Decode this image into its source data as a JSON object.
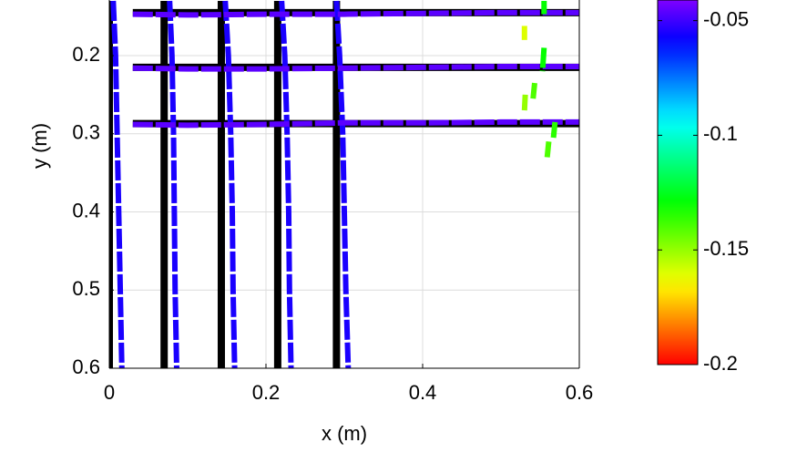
{
  "chart_data": {
    "type": "line",
    "xlabel": "x (m)",
    "ylabel": "y (m)",
    "xlim": [
      0,
      0.6
    ],
    "ylim": [
      0.13,
      0.6
    ],
    "y_reversed": true,
    "xticks": [
      0,
      0.2,
      0.4,
      0.6
    ],
    "yticks": [
      0.2,
      0.3,
      0.4,
      0.5,
      0.6
    ],
    "grid": true,
    "clim": [
      -0.2,
      -0.041
    ],
    "cticks": [
      -0.05,
      -0.1,
      -0.15,
      -0.2
    ],
    "series": [
      {
        "color": "#000000",
        "x": [
          0,
          0
        ],
        "y": [
          0.13,
          0.6
        ]
      },
      {
        "color": "#000000",
        "x": [
          0.07,
          0.07
        ],
        "y": [
          0.13,
          0.6
        ]
      },
      {
        "color": "#000000",
        "x": [
          0.143,
          0.143
        ],
        "y": [
          0.13,
          0.6
        ]
      },
      {
        "color": "#000000",
        "x": [
          0.215,
          0.215
        ],
        "y": [
          0.13,
          0.6
        ]
      },
      {
        "color": "#000000",
        "x": [
          0.29,
          0.29
        ],
        "y": [
          0.13,
          0.6
        ]
      },
      {
        "color": "#000000",
        "x": [
          0.03,
          0.6
        ],
        "y": [
          0.145,
          0.145
        ]
      },
      {
        "color": "#000000",
        "x": [
          0.03,
          0.6
        ],
        "y": [
          0.215,
          0.215
        ]
      },
      {
        "color": "#000000",
        "x": [
          0.03,
          0.6
        ],
        "y": [
          0.287,
          0.287
        ]
      },
      {
        "c": -0.055,
        "x": [
          0.005,
          0.008,
          0.01,
          0.012,
          0.014,
          0.016
        ],
        "y": [
          0.13,
          0.2,
          0.3,
          0.4,
          0.5,
          0.6
        ]
      },
      {
        "c": -0.055,
        "x": [
          0.077,
          0.08,
          0.082,
          0.083,
          0.084,
          0.086
        ],
        "y": [
          0.13,
          0.2,
          0.3,
          0.4,
          0.5,
          0.6
        ]
      },
      {
        "c": -0.055,
        "x": [
          0.148,
          0.152,
          0.155,
          0.157,
          0.158,
          0.16
        ],
        "y": [
          0.13,
          0.2,
          0.3,
          0.4,
          0.5,
          0.6
        ]
      },
      {
        "c": -0.055,
        "x": [
          0.22,
          0.224,
          0.227,
          0.229,
          0.23,
          0.232
        ],
        "y": [
          0.13,
          0.2,
          0.3,
          0.4,
          0.5,
          0.6
        ]
      },
      {
        "c": -0.055,
        "x": [
          0.29,
          0.294,
          0.298,
          0.3,
          0.302,
          0.305
        ],
        "y": [
          0.13,
          0.2,
          0.3,
          0.4,
          0.5,
          0.6
        ]
      },
      {
        "c": -0.046,
        "x": [
          0.03,
          0.1,
          0.2,
          0.3,
          0.4,
          0.5,
          0.6
        ],
        "y": [
          0.147,
          0.148,
          0.147,
          0.147,
          0.146,
          0.145,
          0.145
        ]
      },
      {
        "c": -0.046,
        "x": [
          0.03,
          0.1,
          0.2,
          0.3,
          0.4,
          0.5,
          0.6
        ],
        "y": [
          0.216,
          0.217,
          0.217,
          0.216,
          0.215,
          0.214,
          0.214
        ]
      },
      {
        "c": -0.046,
        "x": [
          0.03,
          0.1,
          0.2,
          0.3,
          0.4,
          0.5,
          0.6
        ],
        "y": [
          0.288,
          0.289,
          0.288,
          0.286,
          0.286,
          0.285,
          0.285
        ]
      },
      {
        "c": -0.13,
        "x": [
          0.555,
          0.555
        ],
        "y": [
          0.13,
          0.147
        ]
      },
      {
        "c": -0.16,
        "x": [
          0.53,
          0.53
        ],
        "y": [
          0.162,
          0.18
        ]
      },
      {
        "c": -0.13,
        "x": [
          0.555,
          0.553
        ],
        "y": [
          0.19,
          0.22
        ]
      },
      {
        "c": -0.14,
        "x": [
          0.543,
          0.541
        ],
        "y": [
          0.235,
          0.255
        ]
      },
      {
        "c": -0.15,
        "x": [
          0.531,
          0.53
        ],
        "y": [
          0.25,
          0.27
        ]
      },
      {
        "c": -0.135,
        "x": [
          0.569,
          0.567
        ],
        "y": [
          0.285,
          0.305
        ]
      },
      {
        "c": -0.14,
        "x": [
          0.561,
          0.559
        ],
        "y": [
          0.31,
          0.33
        ]
      }
    ]
  }
}
